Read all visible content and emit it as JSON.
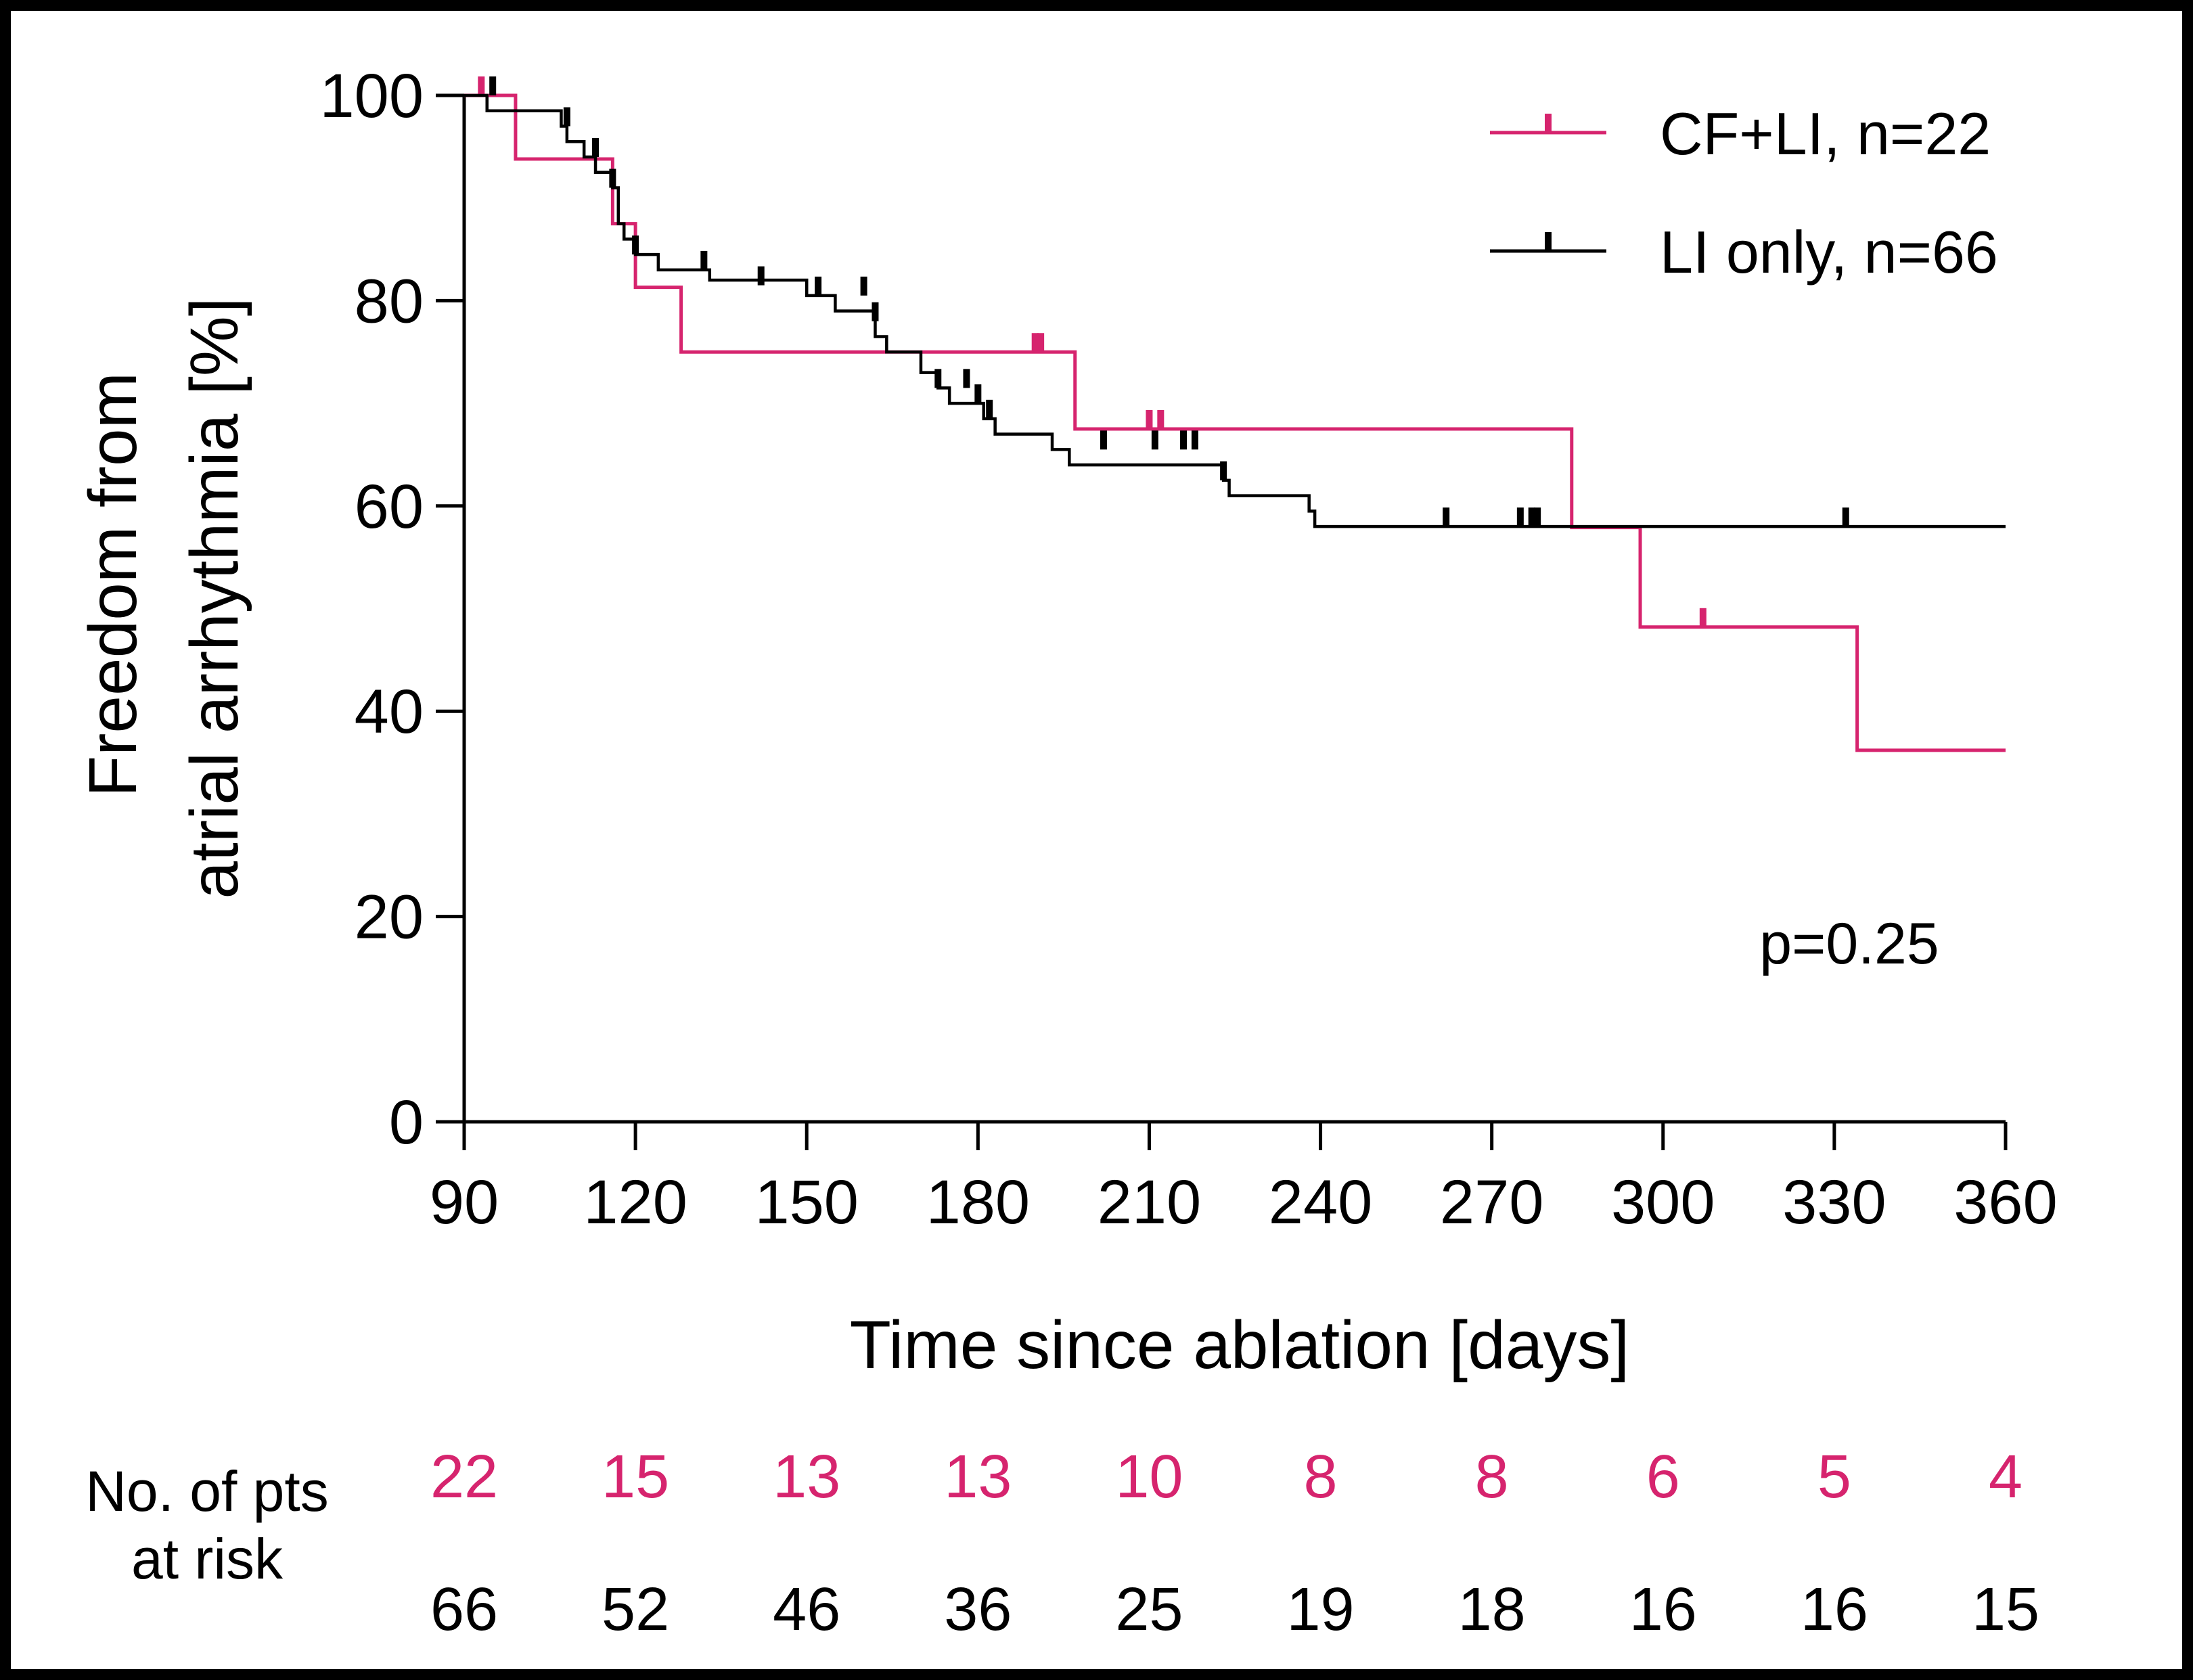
{
  "chart_data": {
    "type": "line",
    "subtype": "kaplan-meier step",
    "title": "",
    "xlabel": "Time since ablation [days]",
    "ylabel_line1": "Freedom from",
    "ylabel_line2": "atrial arrhythmia [%]",
    "xlim": [
      90,
      360
    ],
    "ylim": [
      0,
      100
    ],
    "xticks": [
      90,
      120,
      150,
      180,
      210,
      240,
      270,
      300,
      330,
      360
    ],
    "yticks": [
      0,
      20,
      40,
      60,
      80,
      100
    ],
    "grid": false,
    "legend_position": "top-right",
    "annotation": "p=0.25",
    "series": [
      {
        "name": "CF+LI, n=22",
        "color": "#d6246e",
        "steps": [
          [
            90,
            100
          ],
          [
            99,
            93.8
          ],
          [
            116,
            87.5
          ],
          [
            120,
            81.3
          ],
          [
            128,
            75
          ],
          [
            197,
            67.5
          ],
          [
            284,
            57.9
          ],
          [
            296,
            48.2
          ],
          [
            334,
            36.2
          ],
          [
            360,
            36.2
          ]
        ],
        "censored": [
          [
            93,
            100
          ],
          [
            190,
            75
          ],
          [
            191,
            75
          ],
          [
            210,
            67.5
          ],
          [
            212,
            67.5
          ],
          [
            307,
            48.2
          ]
        ]
      },
      {
        "name": "LI only, n=66",
        "color": "#000000",
        "steps": [
          [
            90,
            100
          ],
          [
            94,
            98.5
          ],
          [
            107,
            97
          ],
          [
            108,
            95.5
          ],
          [
            111,
            94
          ],
          [
            113,
            92.5
          ],
          [
            116,
            91
          ],
          [
            117,
            87.5
          ],
          [
            118,
            86
          ],
          [
            120,
            84.5
          ],
          [
            124,
            83
          ],
          [
            133,
            82
          ],
          [
            150,
            80.5
          ],
          [
            155,
            79
          ],
          [
            162,
            76.5
          ],
          [
            164,
            75
          ],
          [
            170,
            73
          ],
          [
            173,
            71.5
          ],
          [
            175,
            70
          ],
          [
            181,
            68.5
          ],
          [
            183,
            67
          ],
          [
            193,
            65.5
          ],
          [
            196,
            64
          ],
          [
            223,
            62.5
          ],
          [
            224,
            61
          ],
          [
            238,
            59.5
          ],
          [
            239,
            58
          ],
          [
            360,
            58
          ]
        ],
        "censored": [
          [
            95,
            100
          ],
          [
            108,
            97
          ],
          [
            113,
            94
          ],
          [
            116,
            91
          ],
          [
            120,
            84.5
          ],
          [
            132,
            83
          ],
          [
            142,
            81.5
          ],
          [
            152,
            80.5
          ],
          [
            160,
            80.5
          ],
          [
            162,
            78
          ],
          [
            173,
            71.5
          ],
          [
            178,
            71.5
          ],
          [
            180,
            70
          ],
          [
            182,
            68.5
          ],
          [
            202,
            65.5
          ],
          [
            211,
            65.5
          ],
          [
            216,
            65.5
          ],
          [
            218,
            65.5
          ],
          [
            223,
            62.5
          ],
          [
            262,
            58
          ],
          [
            275,
            58
          ],
          [
            277,
            58
          ],
          [
            278,
            58
          ],
          [
            332,
            58
          ]
        ]
      }
    ]
  },
  "risk_table": {
    "label_line1": "No. of pts",
    "label_line2": "at risk",
    "cf_li": [
      "22",
      "15",
      "13",
      "13",
      "10",
      "8",
      "8",
      "6",
      "5",
      "4"
    ],
    "li_only": [
      "66",
      "52",
      "46",
      "36",
      "25",
      "19",
      "18",
      "16",
      "16",
      "15"
    ]
  }
}
